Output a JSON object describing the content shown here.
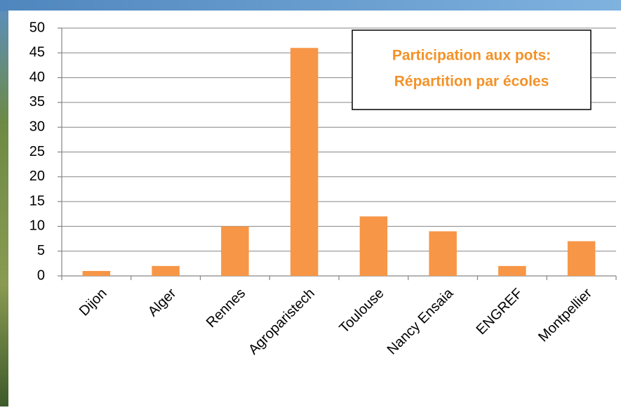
{
  "chart_data": {
    "type": "bar",
    "annotations": [
      "Participation aux pots:",
      "Répartition par écoles"
    ],
    "categories": [
      "Dijon",
      "Alger",
      "Rennes",
      "Agroparistech",
      "Toulouse",
      "Nancy Ensaia",
      "ENGREF",
      "Montpellier"
    ],
    "values": [
      1,
      2,
      10,
      46,
      12,
      9,
      2,
      7
    ],
    "color": "#f79646",
    "ylim": [
      0,
      50
    ],
    "yticks": [
      0,
      5,
      10,
      15,
      20,
      25,
      30,
      35,
      40,
      45,
      50
    ],
    "grid": true
  }
}
